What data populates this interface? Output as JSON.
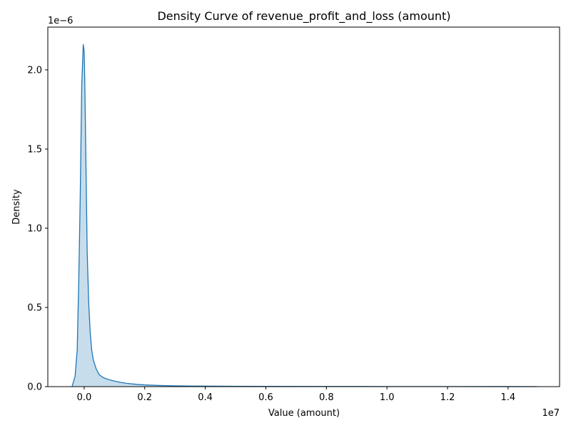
{
  "chart_data": {
    "type": "area",
    "title": "Density Curve of revenue_profit_and_loss (amount)",
    "xlabel": "Value (amount)",
    "ylabel": "Density",
    "x_offset_label": "1e7",
    "y_offset_label": "1e−6",
    "xlim": [
      -1200000,
      15700000
    ],
    "ylim": [
      0,
      2.27e-06
    ],
    "grid": false,
    "x_ticks": [
      0,
      2000000,
      4000000,
      6000000,
      8000000,
      10000000,
      12000000,
      14000000
    ],
    "x_tick_labels": [
      "0.0",
      "0.2",
      "0.4",
      "0.6",
      "0.8",
      "1.0",
      "1.2",
      "1.4"
    ],
    "y_ticks": [
      0,
      5e-07,
      1e-06,
      1.5e-06,
      2e-06
    ],
    "y_tick_labels": [
      "0.0",
      "0.5",
      "1.0",
      "1.5",
      "2.0"
    ],
    "series": [
      {
        "color": "#1f77b4",
        "x": [
          -400000,
          -300000,
          -230000,
          -180000,
          -130000,
          -80000,
          -30000,
          0,
          20000,
          60000,
          100000,
          150000,
          200000,
          250000,
          300000,
          400000,
          500000,
          650000,
          800000,
          1000000,
          1200000,
          1400000,
          1700000,
          2000000,
          2500000,
          3000000,
          3500000,
          4000000,
          5000000,
          6000000,
          8000000,
          10000000,
          12000000,
          14000000,
          14950000
        ],
        "y": [
          0,
          6.5e-08,
          2.3e-07,
          6.5e-07,
          1.2e-06,
          1.9e-06,
          2.16e-06,
          2.12e-06,
          1.93e-06,
          1.4e-06,
          8.5e-07,
          5.3e-07,
          3.4e-07,
          2.3e-07,
          1.7e-07,
          1.1e-07,
          7.5e-08,
          5.5e-08,
          4.5e-08,
          3.5e-08,
          2.7e-08,
          2.1e-08,
          1.5e-08,
          1.1e-08,
          7e-09,
          5e-09,
          4e-09,
          3e-09,
          2e-09,
          1.5e-09,
          1e-09,
          7e-10,
          5e-10,
          3e-10,
          0
        ]
      }
    ]
  }
}
